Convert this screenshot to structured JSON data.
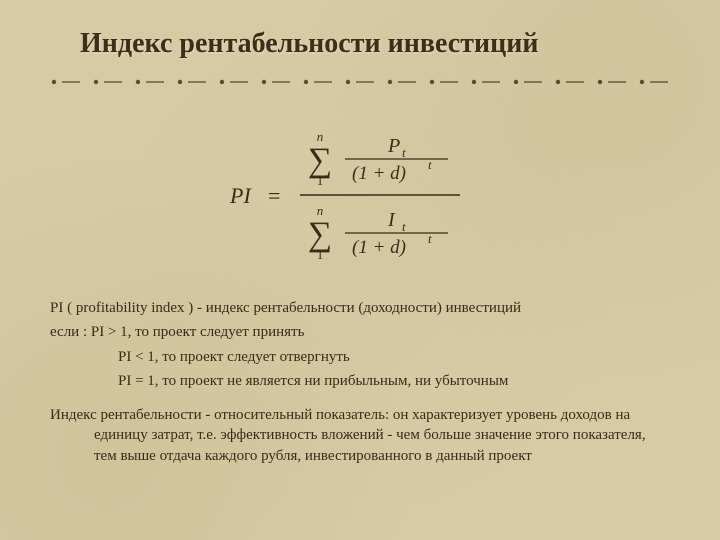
{
  "title": "Индекс рентабельности инвестиций",
  "formula": {
    "lhs": "PI",
    "eq": "=",
    "sum_upper": "n",
    "sum_lower": "1",
    "num_P": "P",
    "num_I": "I",
    "sub_t": "t",
    "denom_base": "(1 + d)",
    "denom_exp": "t",
    "stroke": "#3a2b17",
    "font": "Georgia, Times New Roman, serif",
    "font_italic": "italic",
    "fs_main": 22,
    "fs_sub": 13,
    "fs_sigma": 34
  },
  "text": {
    "line1": "PI ( profitability index ) - индекс рентабельности (доходности) инвестиций",
    "line2": "если : PI > 1, то проект следует принять",
    "line3": "PI < 1, то проект следует отвергнуть",
    "line4": "PI = 1, то проект не является ни прибыльным, ни убыточным",
    "para2": "Индекс рентабельности - относительный показатель: он характеризует уровень доходов на единицу затрат, т.е. эффективность вложений - чем больше значение этого показателя, тем выше отдача каждого рубля, инвестированного в данный проект"
  },
  "divider": {
    "dot_color": "#5a4a2e",
    "dash_color": "#6b5a3a",
    "dot_r": 2.2,
    "dash_w": 18,
    "gap": 42
  }
}
